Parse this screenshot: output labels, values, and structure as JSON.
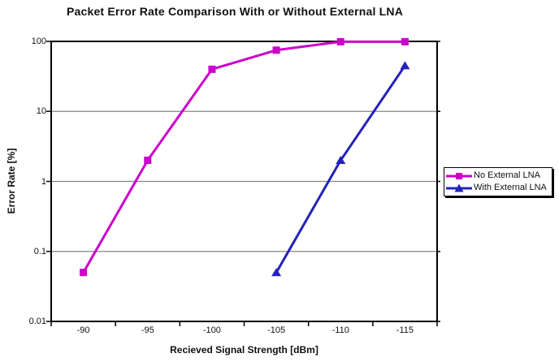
{
  "chart_data": {
    "type": "line",
    "title": "Packet Error Rate Comparison With or Without External LNA",
    "xlabel": "Recieved Signal Strength [dBm]",
    "ylabel": "Error Rate [%]",
    "x_categories": [
      "-90",
      "-95",
      "-100",
      "-105",
      "-110",
      "-115"
    ],
    "y_scale": "log",
    "y_ticks": [
      "100",
      "10",
      "1",
      "0.1",
      "0.01"
    ],
    "ylim": [
      0.01,
      100
    ],
    "grid": "horizontal-major",
    "grid_color": "#848484",
    "axis_color": "#000000",
    "legend_position": "right",
    "series": [
      {
        "name": "No External LNA",
        "color": "#cc00cc",
        "marker": "square",
        "x": [
          -90,
          -95,
          -100,
          -105,
          -110,
          -115
        ],
        "values": [
          0.05,
          2,
          40,
          75,
          99,
          99
        ]
      },
      {
        "name": "With External LNA",
        "color": "#2222bb",
        "marker": "triangle",
        "x": [
          -105,
          -110,
          -115
        ],
        "values": [
          0.05,
          2,
          45
        ]
      }
    ]
  }
}
